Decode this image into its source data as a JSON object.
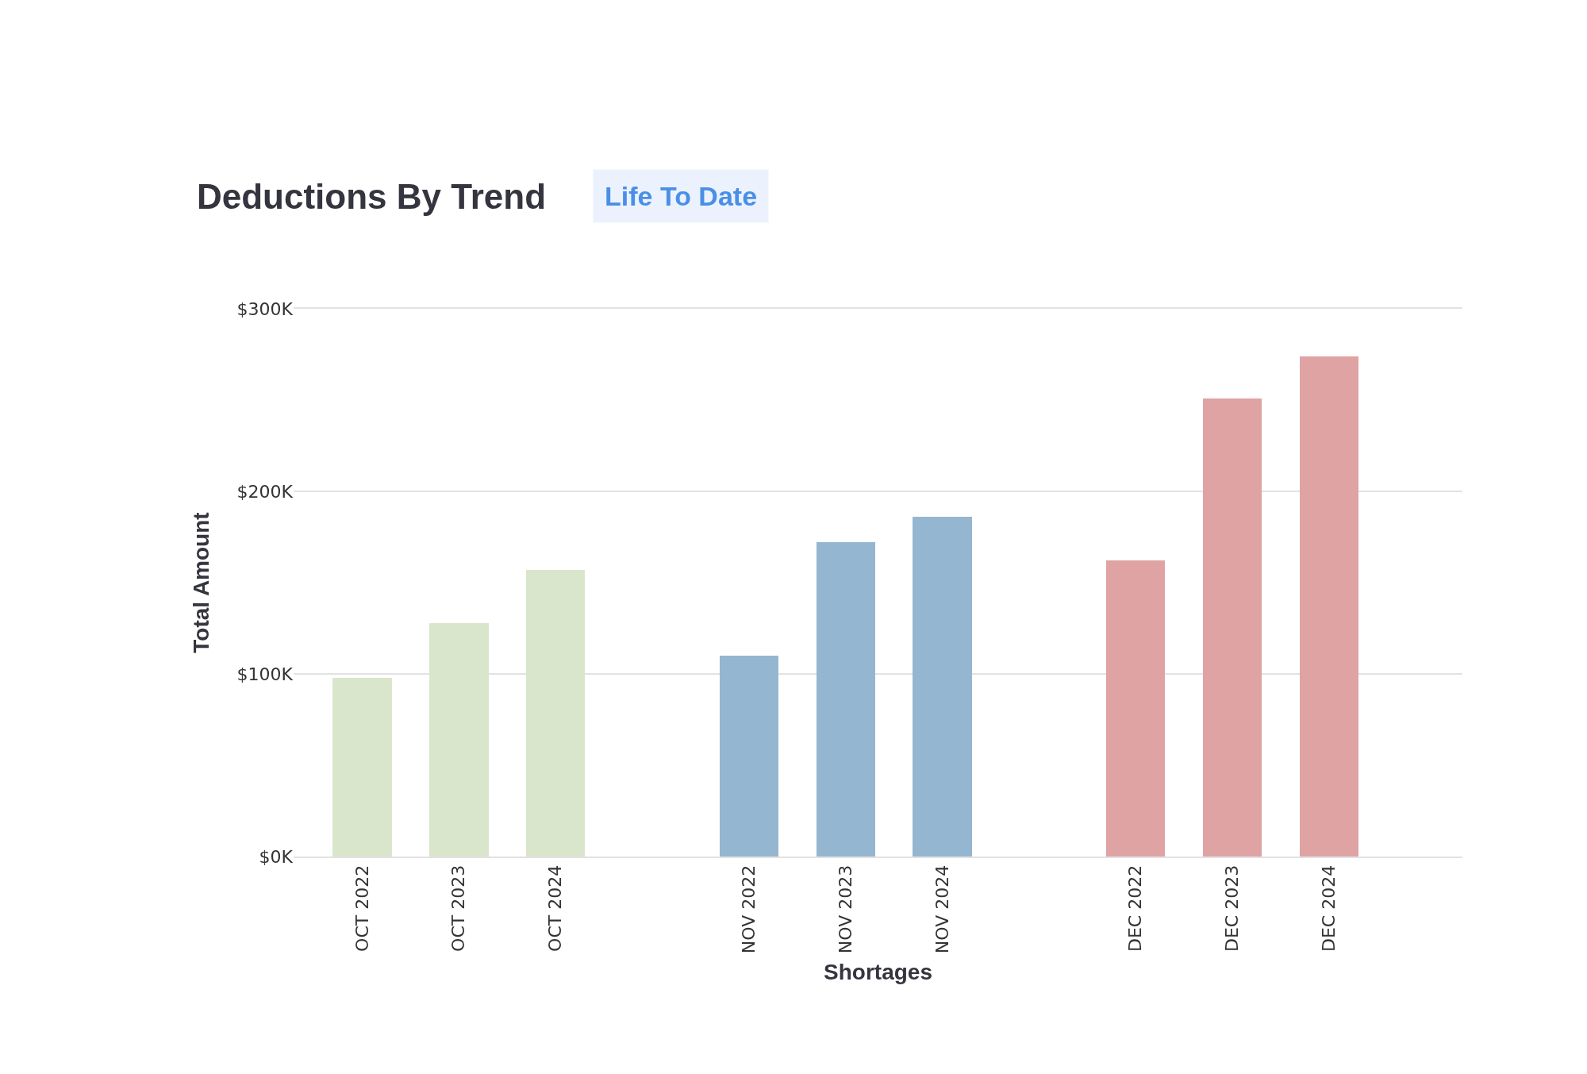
{
  "chart_data": {
    "type": "bar",
    "title": "Deductions By Trend",
    "subtitle": "Life To Date",
    "xlabel": "Shortages",
    "ylabel": "Total Amount",
    "categories": [
      "OCT 2022",
      "OCT 2023",
      "OCT 2024",
      "NOV 2022",
      "NOV 2023",
      "NOV 2024",
      "DEC 2022",
      "DEC 2023",
      "DEC 2024"
    ],
    "series": [
      {
        "color": "#d9e6cc",
        "values": [
          98000,
          128000,
          157000,
          null,
          null,
          null,
          null,
          null,
          null
        ]
      },
      {
        "color": "#95b6d0",
        "values": [
          null,
          null,
          null,
          110000,
          172000,
          186000,
          null,
          null,
          null
        ]
      },
      {
        "color": "#dfa3a3",
        "values": [
          null,
          null,
          null,
          null,
          null,
          null,
          162000,
          251000,
          274000
        ]
      }
    ],
    "ylim": [
      0,
      300000
    ],
    "yticks": [
      {
        "value": 0,
        "label": "$0K"
      },
      {
        "value": 100000,
        "label": "$100K"
      },
      {
        "value": 200000,
        "label": "$200K"
      },
      {
        "value": 300000,
        "label": "$300K"
      }
    ],
    "grid": "y"
  }
}
